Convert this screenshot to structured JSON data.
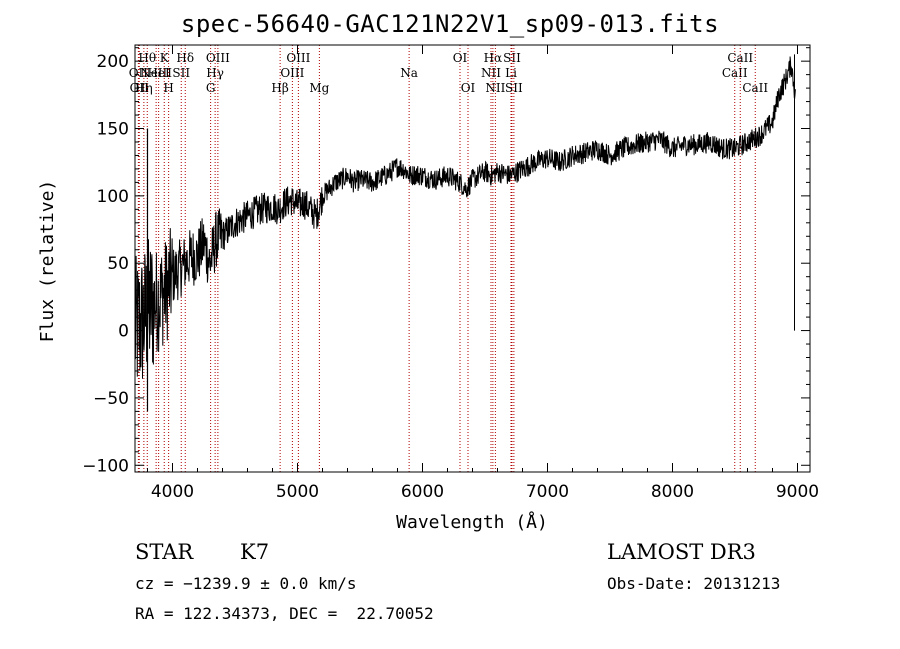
{
  "title": "spec-56640-GAC121N22V1_sp09-013.fits",
  "info": {
    "class": "STAR",
    "subclass": "K7",
    "survey": "LAMOST DR3",
    "cz": "cz = −1239.9 ± 0.0 km/s",
    "obs_date": "Obs-Date: 20131213",
    "coords": "RA = 122.34373, DEC =  22.70052"
  },
  "chart_data": {
    "type": "line",
    "title": "spec-56640-GAC121N22V1_sp09-013.fits",
    "xlabel": "Wavelength (Å)",
    "ylabel": "Flux (relative)",
    "xlim": [
      3700,
      9100
    ],
    "ylim": [
      -105,
      212
    ],
    "xticks": [
      4000,
      5000,
      6000,
      7000,
      8000,
      9000
    ],
    "yticks": [
      -100,
      -50,
      0,
      50,
      100,
      150,
      200
    ],
    "line_color": "#000000",
    "marker_color": "#b00000",
    "series": [
      {
        "name": "flux",
        "x": [
          3700,
          3750,
          3800,
          3850,
          3900,
          3950,
          4000,
          4050,
          4100,
          4150,
          4200,
          4250,
          4300,
          4350,
          4400,
          4450,
          4500,
          4600,
          4700,
          4800,
          4850,
          4900,
          4950,
          5000,
          5050,
          5100,
          5150,
          5200,
          5250,
          5300,
          5350,
          5400,
          5450,
          5500,
          5600,
          5700,
          5750,
          5800,
          5850,
          5900,
          5950,
          6000,
          6100,
          6200,
          6300,
          6350,
          6400,
          6500,
          6550,
          6600,
          6700,
          6800,
          6900,
          7000,
          7100,
          7200,
          7300,
          7400,
          7500,
          7600,
          7700,
          7800,
          7900,
          8000,
          8100,
          8200,
          8300,
          8400,
          8500,
          8600,
          8700,
          8750,
          8800,
          8850,
          8900,
          8950,
          9000
        ],
        "y": [
          0,
          5,
          15,
          20,
          25,
          30,
          40,
          45,
          50,
          55,
          55,
          65,
          50,
          68,
          70,
          75,
          80,
          85,
          90,
          92,
          90,
          95,
          97,
          93,
          95,
          90,
          85,
          100,
          105,
          110,
          112,
          115,
          110,
          112,
          110,
          115,
          118,
          122,
          120,
          115,
          116,
          115,
          112,
          115,
          110,
          105,
          112,
          118,
          115,
          118,
          115,
          120,
          125,
          128,
          125,
          130,
          132,
          135,
          130,
          135,
          138,
          140,
          142,
          135,
          138,
          138,
          140,
          135,
          135,
          140,
          145,
          150,
          155,
          175,
          185,
          198,
          160
        ]
      }
    ],
    "line_markers": [
      {
        "wavelength": 3727,
        "label": "OII",
        "row": 1
      },
      {
        "wavelength": 3734,
        "label": "OII",
        "row": 2
      },
      {
        "wavelength": 3771,
        "label": "Hη",
        "row": 2
      },
      {
        "wavelength": 3798,
        "label": "Hθ",
        "row": 0
      },
      {
        "wavelength": 3869,
        "label": "NeIII",
        "row": 1
      },
      {
        "wavelength": 3889,
        "label": "HeI",
        "row": 1
      },
      {
        "wavelength": 3934,
        "label": "K",
        "row": 0
      },
      {
        "wavelength": 3969,
        "label": "H",
        "row": 2
      },
      {
        "wavelength": 4070,
        "label": "SII",
        "row": 1
      },
      {
        "wavelength": 4102,
        "label": "Hδ",
        "row": 0
      },
      {
        "wavelength": 4305,
        "label": "G",
        "row": 2
      },
      {
        "wavelength": 4341,
        "label": "Hγ",
        "row": 1
      },
      {
        "wavelength": 4363,
        "label": "OIII",
        "row": 0
      },
      {
        "wavelength": 4861,
        "label": "Hβ",
        "row": 2
      },
      {
        "wavelength": 4959,
        "label": "OIII",
        "row": 1
      },
      {
        "wavelength": 5007,
        "label": "OIII",
        "row": 0
      },
      {
        "wavelength": 5175,
        "label": "Mg",
        "row": 2
      },
      {
        "wavelength": 5893,
        "label": "Na",
        "row": 1
      },
      {
        "wavelength": 6300,
        "label": "OI",
        "row": 0
      },
      {
        "wavelength": 6364,
        "label": "OI",
        "row": 2
      },
      {
        "wavelength": 6548,
        "label": "NII",
        "row": 1
      },
      {
        "wavelength": 6563,
        "label": "Hα",
        "row": 0
      },
      {
        "wavelength": 6583,
        "label": "NII",
        "row": 2
      },
      {
        "wavelength": 6708,
        "label": "Li",
        "row": 1
      },
      {
        "wavelength": 6716,
        "label": "SII",
        "row": 0
      },
      {
        "wavelength": 6731,
        "label": "SII",
        "row": 2
      },
      {
        "wavelength": 8498,
        "label": "CaII",
        "row": 1
      },
      {
        "wavelength": 8542,
        "label": "CaII",
        "row": 0
      },
      {
        "wavelength": 8662,
        "label": "CaII",
        "row": 2
      }
    ]
  }
}
